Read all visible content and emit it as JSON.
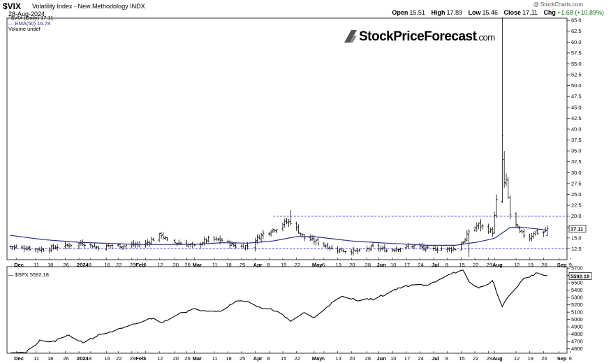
{
  "header": {
    "ticker": "$VIX",
    "name": "Volatility Index - New Methodology",
    "exchange": "INDX",
    "date": "28-Aug-2024",
    "credit": "@ StockCharts.com",
    "ohlc": {
      "open_label": "Open",
      "open": "15.51",
      "high_label": "High",
      "high": "17.89",
      "low_label": "Low",
      "low": "15.46",
      "close_label": "Close",
      "close": "17.11",
      "chg_label": "Chg",
      "chg": "+1.68 (+10.89%)",
      "chg_color": "#0a7a0a"
    }
  },
  "legend": {
    "main": "$VIX (Daily) 17.11",
    "ema": "EMA(50) 16.78",
    "volume": "Volume undef",
    "ema_color": "#2b2f88"
  },
  "logo": {
    "main": "StockPriceForecast",
    "suffix": ".com"
  },
  "chart_data": [
    {
      "type": "ohlc",
      "ticker": "$VIX",
      "yticks": [
        12.5,
        15.0,
        17.5,
        20.0,
        22.5,
        25.0,
        27.5,
        30.0,
        32.5,
        35.0,
        37.5,
        40.0,
        42.5,
        45.0,
        47.5,
        50.0,
        52.5,
        55.0,
        57.5,
        60.0,
        62.5,
        65.0
      ],
      "ylim": [
        10.0,
        65.5
      ],
      "hlines": [
        {
          "value": 20.0,
          "from": "2024-04-10"
        },
        {
          "value": 12.5,
          "from": "2023-11-28"
        }
      ],
      "last_value_tag": "17.11",
      "ema_label": "EMA(50)",
      "grid": false,
      "legend": "top-left",
      "series": [
        {
          "name": "$VIX",
          "keypoints": [
            [
              "2023-11-29",
              13.0
            ],
            [
              "2023-12-08",
              12.6
            ],
            [
              "2023-12-15",
              12.3
            ],
            [
              "2023-12-22",
              13.0
            ],
            [
              "2024-01-04",
              13.8
            ],
            [
              "2024-01-12",
              12.8
            ],
            [
              "2024-01-19",
              13.3
            ],
            [
              "2024-01-26",
              13.2
            ],
            [
              "2024-02-05",
              13.7
            ],
            [
              "2024-02-13",
              15.8
            ],
            [
              "2024-02-16",
              14.2
            ],
            [
              "2024-02-23",
              13.8
            ],
            [
              "2024-03-01",
              13.1
            ],
            [
              "2024-03-08",
              14.7
            ],
            [
              "2024-03-15",
              14.4
            ],
            [
              "2024-03-22",
              13.1
            ],
            [
              "2024-03-28",
              13.1
            ],
            [
              "2024-04-05",
              16.0
            ],
            [
              "2024-04-12",
              17.3
            ],
            [
              "2024-04-16",
              18.5
            ],
            [
              "2024-04-19",
              18.7
            ],
            [
              "2024-04-26",
              15.0
            ],
            [
              "2024-05-03",
              14.0
            ],
            [
              "2024-05-10",
              12.6
            ],
            [
              "2024-05-17",
              12.0
            ],
            [
              "2024-05-24",
              11.9
            ],
            [
              "2024-05-31",
              12.9
            ],
            [
              "2024-06-07",
              12.2
            ],
            [
              "2024-06-14",
              12.7
            ],
            [
              "2024-06-21",
              13.2
            ],
            [
              "2024-06-28",
              12.4
            ],
            [
              "2024-07-05",
              12.5
            ],
            [
              "2024-07-12",
              12.5
            ],
            [
              "2024-07-17",
              14.5
            ],
            [
              "2024-07-19",
              16.5
            ],
            [
              "2024-07-24",
              18.0
            ],
            [
              "2024-07-31",
              16.4
            ],
            [
              "2024-08-02",
              23.4
            ],
            [
              "2024-08-05",
              38.6
            ],
            [
              "2024-08-07",
              27.8
            ],
            [
              "2024-08-09",
              20.4
            ],
            [
              "2024-08-14",
              16.2
            ],
            [
              "2024-08-19",
              15.0
            ],
            [
              "2024-08-21",
              16.3
            ],
            [
              "2024-08-26",
              16.2
            ],
            [
              "2024-08-28",
              17.11
            ]
          ]
        },
        {
          "name": "EMA(50)",
          "keypoints": [
            [
              "2023-11-28",
              15.6
            ],
            [
              "2023-12-15",
              14.6
            ],
            [
              "2024-01-02",
              14.0
            ],
            [
              "2024-02-01",
              13.5
            ],
            [
              "2024-03-01",
              13.5
            ],
            [
              "2024-03-15",
              13.9
            ],
            [
              "2024-03-28",
              13.8
            ],
            [
              "2024-04-10",
              14.3
            ],
            [
              "2024-04-22",
              15.3
            ],
            [
              "2024-05-01",
              15.3
            ],
            [
              "2024-05-20",
              14.3
            ],
            [
              "2024-06-07",
              13.8
            ],
            [
              "2024-06-28",
              13.3
            ],
            [
              "2024-07-12",
              13.3
            ],
            [
              "2024-07-24",
              14.1
            ],
            [
              "2024-08-01",
              14.9
            ],
            [
              "2024-08-09",
              17.4
            ],
            [
              "2024-08-16",
              17.4
            ],
            [
              "2024-08-28",
              16.78
            ]
          ]
        }
      ],
      "x_labels": [
        "Dec",
        "11",
        "18",
        "26",
        "2024",
        "8",
        "16",
        "22",
        "29",
        "Feb",
        "5",
        "12",
        "20",
        "26",
        "Mar",
        "11",
        "18",
        "25",
        "Apr",
        "8",
        "15",
        "22",
        "May",
        "6",
        "13",
        "20",
        "28",
        "Jun",
        "10",
        "17",
        "24",
        "Jul",
        "8",
        "15",
        "22",
        "29",
        "Aug",
        "12",
        "19",
        "26",
        "Sep",
        "9"
      ]
    },
    {
      "type": "line",
      "ticker": "$SPX",
      "legend_text": "$SPX 5592.18",
      "last_value_tag": "5592.18",
      "yticks": [
        4600,
        4700,
        4800,
        4900,
        5000,
        5100,
        5200,
        5300,
        5400,
        5500,
        5600,
        5700
      ],
      "ylim": [
        4540,
        5720
      ],
      "series": [
        {
          "name": "$SPX",
          "keypoints": [
            [
              "2023-11-28",
              4554
            ],
            [
              "2023-12-06",
              4549
            ],
            [
              "2023-12-13",
              4707
            ],
            [
              "2023-12-20",
              4698
            ],
            [
              "2023-12-28",
              4783
            ],
            [
              "2024-01-04",
              4688
            ],
            [
              "2024-01-12",
              4783
            ],
            [
              "2024-01-19",
              4840
            ],
            [
              "2024-01-26",
              4891
            ],
            [
              "2024-02-02",
              4958
            ],
            [
              "2024-02-09",
              5026
            ],
            [
              "2024-02-13",
              4953
            ],
            [
              "2024-02-22",
              5087
            ],
            [
              "2024-03-01",
              5137
            ],
            [
              "2024-03-08",
              5124
            ],
            [
              "2024-03-15",
              5117
            ],
            [
              "2024-03-21",
              5241
            ],
            [
              "2024-03-28",
              5254
            ],
            [
              "2024-04-04",
              5147
            ],
            [
              "2024-04-12",
              5123
            ],
            [
              "2024-04-19",
              4967
            ],
            [
              "2024-04-26",
              5100
            ],
            [
              "2024-05-01",
              5018
            ],
            [
              "2024-05-08",
              5187
            ],
            [
              "2024-05-15",
              5308
            ],
            [
              "2024-05-23",
              5268
            ],
            [
              "2024-05-31",
              5278
            ],
            [
              "2024-06-07",
              5347
            ],
            [
              "2024-06-12",
              5421
            ],
            [
              "2024-06-20",
              5473
            ],
            [
              "2024-06-28",
              5460
            ],
            [
              "2024-07-05",
              5567
            ],
            [
              "2024-07-10",
              5633
            ],
            [
              "2024-07-16",
              5667
            ],
            [
              "2024-07-19",
              5505
            ],
            [
              "2024-07-24",
              5427
            ],
            [
              "2024-07-31",
              5522
            ],
            [
              "2024-08-05",
              5186
            ],
            [
              "2024-08-09",
              5344
            ],
            [
              "2024-08-16",
              5554
            ],
            [
              "2024-08-23",
              5634
            ],
            [
              "2024-08-28",
              5592
            ]
          ]
        }
      ],
      "x_labels": [
        "Dec",
        "11",
        "18",
        "26",
        "2024",
        "8",
        "16",
        "22",
        "29",
        "Feb",
        "5",
        "12",
        "20",
        "26",
        "Mar",
        "11",
        "18",
        "25",
        "Apr",
        "8",
        "15",
        "22",
        "May",
        "6",
        "13",
        "20",
        "28",
        "Jun",
        "10",
        "17",
        "24",
        "Jul",
        "8",
        "15",
        "22",
        "29",
        "Aug",
        "12",
        "19",
        "26",
        "Sep",
        "9"
      ]
    }
  ],
  "colors": {
    "bar": "#000000",
    "ema": "#2b2f88",
    "hline": "#1f2dd6",
    "axis": "#000000",
    "tag_bg": "#ffffff"
  }
}
